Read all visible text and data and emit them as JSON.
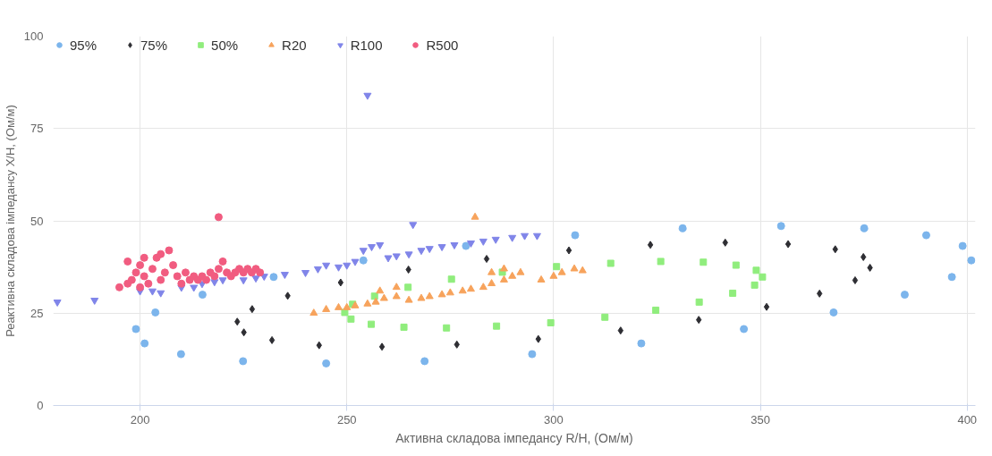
{
  "chart_data": {
    "type": "scatter",
    "xlabel": "Активна складова імпедансу R/H, (Ом/м)",
    "ylabel": "Реактивна складова імпедансу X/H, (Ом/м)",
    "xlim": [
      179,
      402
    ],
    "xticks": [
      200,
      250,
      300,
      350,
      400
    ],
    "ylim": [
      0,
      100
    ],
    "yticks": [
      0,
      25,
      50,
      75,
      100
    ],
    "grid": true,
    "legend": "top left",
    "series": [
      {
        "name": "95%",
        "color": "#7cb5ec",
        "marker": "circle",
        "x": [
          401,
          398.9,
          390.1,
          375.1,
          355.0,
          331.2,
          305.2,
          278.8,
          254.0,
          232.3,
          215.1,
          203.7,
          199,
          201.1,
          209.9,
          224.9,
          245.0,
          268.8,
          294.8,
          321.2,
          346.0,
          367.7,
          384.9,
          396.3
        ],
        "values": [
          39.3,
          43.2,
          46.1,
          48.0,
          48.6,
          48.0,
          46.1,
          43.2,
          39.3,
          34.8,
          30.0,
          25.2,
          20.7,
          16.8,
          13.9,
          12.0,
          11.4,
          12.0,
          13.9,
          16.8,
          20.7,
          25.2,
          30.0,
          34.8
        ]
      },
      {
        "name": "75%",
        "color": "#2e2e33",
        "marker": "diamond",
        "x": [
          376.5,
          374.9,
          368.1,
          356.7,
          341.5,
          323.4,
          303.7,
          283.8,
          264.9,
          248.5,
          235.7,
          227.1,
          223.5,
          225.1,
          231.9,
          243.3,
          258.5,
          276.6,
          296.3,
          316.2,
          335.1,
          351.5,
          364.3,
          372.9
        ],
        "values": [
          37.3,
          40.2,
          42.3,
          43.7,
          44.1,
          43.5,
          42.0,
          39.7,
          36.8,
          33.3,
          29.7,
          26.1,
          22.7,
          19.8,
          17.7,
          16.3,
          15.9,
          16.5,
          18.0,
          20.3,
          23.2,
          26.7,
          30.3,
          33.9
        ]
      },
      {
        "name": "50%",
        "color": "#90ed7d",
        "marker": "square",
        "x": [
          350.5,
          349.0,
          344.1,
          336.2,
          325.9,
          313.8,
          300.7,
          287.6,
          275.3,
          264.8,
          256.7,
          251.4,
          249.5,
          251.0,
          255.9,
          263.8,
          274.1,
          286.2,
          299.3,
          312.4,
          324.7,
          335.2,
          343.3,
          348.6
        ],
        "values": [
          34.8,
          36.6,
          38.0,
          38.8,
          39.0,
          38.5,
          37.6,
          36.1,
          34.2,
          32.0,
          29.6,
          27.4,
          25.2,
          23.4,
          22.0,
          21.2,
          21.0,
          21.5,
          22.4,
          23.9,
          25.8,
          28.0,
          30.4,
          32.6
        ]
      },
      {
        "name": "R20",
        "color": "#f7a35c",
        "marker": "triangle",
        "x": [
          242,
          245,
          248,
          250,
          252,
          255,
          257,
          259,
          262,
          265,
          268,
          270,
          273,
          275,
          278,
          280,
          283,
          285,
          288,
          290,
          292,
          297,
          300,
          302,
          305,
          307,
          281,
          258,
          262,
          285,
          288
        ],
        "values": [
          25,
          26,
          26.5,
          26.5,
          27,
          27.5,
          28,
          29,
          29.5,
          28.5,
          29,
          29.5,
          30,
          30.5,
          31,
          31.5,
          32,
          33,
          34,
          35,
          36,
          34,
          35,
          36,
          37,
          36.5,
          51,
          31,
          32,
          36,
          37
        ]
      },
      {
        "name": "R100",
        "color": "#8085e9",
        "marker": "triangle-down",
        "x": [
          180,
          189,
          255,
          266,
          200,
          203,
          205,
          210,
          213,
          215,
          218,
          220,
          225,
          228,
          230,
          235,
          240,
          243,
          245,
          248,
          250,
          252,
          254,
          256,
          258,
          260,
          262,
          265,
          268,
          270,
          273,
          276,
          280,
          283,
          286,
          290,
          293,
          296
        ],
        "values": [
          28,
          28.5,
          84,
          49,
          31,
          31,
          30.5,
          32,
          32,
          33,
          33.5,
          34,
          34,
          34.5,
          35,
          35.5,
          36,
          37,
          38,
          37.5,
          38,
          39,
          42,
          43,
          43.5,
          40,
          40.5,
          41,
          42,
          42.5,
          43,
          43.5,
          44,
          44.5,
          45,
          45.5,
          46,
          46
        ]
      },
      {
        "name": "R500",
        "color": "#f15c80",
        "marker": "circle",
        "x": [
          195,
          197,
          198,
          199,
          200,
          200,
          201,
          202,
          203,
          204,
          205,
          206,
          207,
          208,
          209,
          210,
          211,
          212,
          213,
          214,
          215,
          216,
          217,
          218,
          219,
          220,
          221,
          222,
          223,
          224,
          225,
          226,
          227,
          228,
          229,
          219,
          201,
          205,
          197
        ],
        "values": [
          32,
          33,
          34,
          36,
          32,
          38,
          35,
          33,
          37,
          40,
          34,
          36,
          42,
          38,
          35,
          33,
          36,
          34,
          35,
          34,
          35,
          34,
          36,
          35,
          37,
          39,
          36,
          35,
          36,
          37,
          36,
          37,
          36,
          37,
          36,
          51,
          40,
          41,
          39
        ]
      }
    ]
  }
}
